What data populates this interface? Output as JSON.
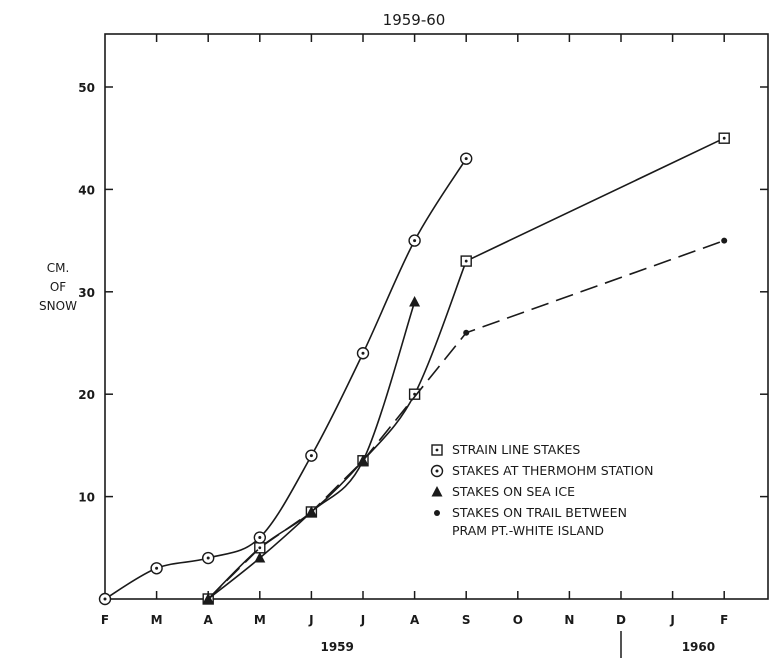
{
  "chart_data": {
    "type": "line",
    "title": "1959-60",
    "ylabel": [
      "CM.",
      "OF",
      "SNOW"
    ],
    "ylim": [
      0,
      55
    ],
    "yticks": [
      10,
      20,
      30,
      40,
      50
    ],
    "xlim": [
      0,
      13
    ],
    "xticks": [
      "F",
      "M",
      "A",
      "M",
      "J",
      "J",
      "A",
      "S",
      "O",
      "N",
      "D",
      "J",
      "F"
    ],
    "year_labels": [
      {
        "label": "1959",
        "x": 4.5
      },
      {
        "label": "1960",
        "x": 11.5
      }
    ],
    "year_divider_x": 10,
    "series": [
      {
        "name": "STRAIN LINE STAKES",
        "marker": "square-dot",
        "line": "solid",
        "points": [
          [
            1,
            0
          ],
          [
            2,
            5
          ],
          [
            3,
            8.5
          ],
          [
            4,
            13.5
          ],
          [
            5,
            20
          ],
          [
            6,
            33
          ],
          [
            11,
            45
          ]
        ]
      },
      {
        "name": "STAKES AT THERMOHM STATION",
        "marker": "circle-dot",
        "line": "solid",
        "points": [
          [
            -1,
            0
          ],
          [
            0,
            3
          ],
          [
            1,
            4
          ],
          [
            2,
            6
          ],
          [
            3,
            14
          ],
          [
            4,
            24
          ],
          [
            5,
            35
          ],
          [
            6,
            43
          ]
        ]
      },
      {
        "name": "STAKES ON SEA ICE",
        "marker": "triangle",
        "line": "solid",
        "points": [
          [
            1,
            0
          ],
          [
            2,
            4
          ],
          [
            3,
            8.5
          ],
          [
            4,
            13.5
          ],
          [
            5,
            29
          ]
        ]
      },
      {
        "name": "STAKES ON TRAIL BETWEEN PRAM PT.-WHITE ISLAND",
        "name_lines": [
          "STAKES ON TRAIL BETWEEN",
          "PRAM PT.-WHITE ISLAND"
        ],
        "marker": "dot",
        "line": "dashed",
        "points": [
          [
            1,
            0
          ],
          [
            2,
            5
          ],
          [
            3,
            8.5
          ],
          [
            4,
            13.5
          ],
          [
            6,
            26
          ],
          [
            11,
            35
          ]
        ]
      }
    ],
    "legend_position": "bottom-right",
    "grid": false
  }
}
